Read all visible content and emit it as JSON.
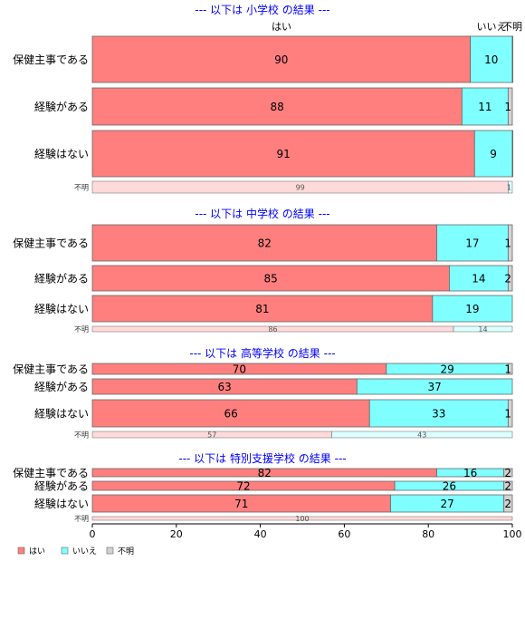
{
  "colors": {
    "yes": "#ff7f7f",
    "no": "#7fffff",
    "unknown": "#d3d3d3",
    "title": "#0000ff",
    "axis": "#000000",
    "border": "#666666"
  },
  "header_labels": {
    "yes": "はい",
    "no": "いいえ",
    "unknown": "不明"
  },
  "legend": [
    {
      "key": "yes",
      "label": "はい"
    },
    {
      "key": "no",
      "label": "いいえ"
    },
    {
      "key": "unknown",
      "label": "不明"
    }
  ],
  "axis": {
    "ticks": [
      "0",
      "20",
      "40",
      "60",
      "80",
      "100"
    ]
  },
  "chart_data": {
    "type": "bar",
    "orientation": "horizontal",
    "stacked": true,
    "xlim": [
      0,
      100
    ],
    "series": [
      {
        "name": "はい",
        "key": "yes"
      },
      {
        "name": "いいえ",
        "key": "no"
      },
      {
        "name": "不明",
        "key": "unknown"
      }
    ],
    "panels": [
      {
        "title": "--- 以下は 小学校 の結果 ---",
        "rows": [
          {
            "label": "保健主事である",
            "yes": 90,
            "no": 10,
            "unknown": 0.4
          },
          {
            "label": "経験がある",
            "yes": 88,
            "no": 11,
            "unknown": 1
          },
          {
            "label": "経験はない",
            "yes": 91,
            "no": 9,
            "unknown": 0.4
          },
          {
            "label": "不明",
            "yes": 99,
            "no": 1,
            "unknown": 0
          }
        ]
      },
      {
        "title": "--- 以下は 中学校 の結果 ---",
        "rows": [
          {
            "label": "保健主事である",
            "yes": 82,
            "no": 17,
            "unknown": 1
          },
          {
            "label": "経験がある",
            "yes": 85,
            "no": 14,
            "unknown": 2
          },
          {
            "label": "経験はない",
            "yes": 81,
            "no": 19,
            "unknown": 0
          },
          {
            "label": "不明",
            "yes": 86,
            "no": 14,
            "unknown": 0
          }
        ]
      },
      {
        "title": "--- 以下は 高等学校 の結果 ---",
        "rows": [
          {
            "label": "保健主事である",
            "yes": 70,
            "no": 29,
            "unknown": 1
          },
          {
            "label": "経験がある",
            "yes": 63,
            "no": 37,
            "unknown": 0
          },
          {
            "label": "経験はない",
            "yes": 66,
            "no": 33,
            "unknown": 1
          },
          {
            "label": "不明",
            "yes": 57,
            "no": 43,
            "unknown": 0
          }
        ]
      },
      {
        "title": "--- 以下は 特別支援学校 の結果 ---",
        "rows": [
          {
            "label": "保健主事である",
            "yes": 82,
            "no": 16,
            "unknown": 2
          },
          {
            "label": "経験がある",
            "yes": 72,
            "no": 26,
            "unknown": 2
          },
          {
            "label": "経験はない",
            "yes": 71,
            "no": 27,
            "unknown": 2
          },
          {
            "label": "不明",
            "yes": 100,
            "no": 0,
            "unknown": 0
          }
        ]
      }
    ]
  }
}
